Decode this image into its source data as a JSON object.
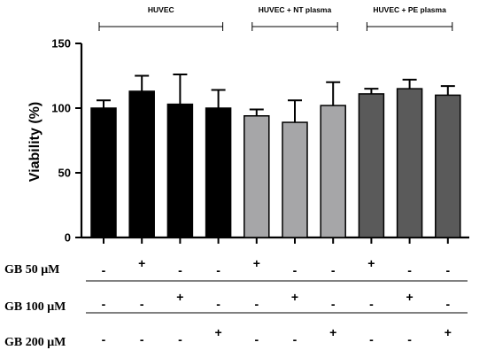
{
  "chart_data": {
    "type": "bar",
    "ylabel": "Viability (%)",
    "ylim": [
      0,
      150
    ],
    "yticks": [
      0,
      50,
      100,
      150
    ],
    "groups": [
      {
        "label": "HUVEC",
        "bar_indices": [
          0,
          1,
          2,
          3
        ]
      },
      {
        "label": "HUVEC + NT plasma",
        "bar_indices": [
          4,
          5,
          6
        ]
      },
      {
        "label": "HUVEC + PE  plasma",
        "bar_indices": [
          7,
          8,
          9
        ]
      }
    ],
    "bars": [
      {
        "value": 100,
        "error": 6,
        "color": "#000000"
      },
      {
        "value": 113,
        "error": 12,
        "color": "#000000"
      },
      {
        "value": 103,
        "error": 23,
        "color": "#000000"
      },
      {
        "value": 100,
        "error": 14,
        "color": "#000000"
      },
      {
        "value": 94,
        "error": 5,
        "color": "#a6a6a8"
      },
      {
        "value": 89,
        "error": 17,
        "color": "#a6a6a8"
      },
      {
        "value": 102,
        "error": 18,
        "color": "#a6a6a8"
      },
      {
        "value": 111,
        "error": 4,
        "color": "#5a5a5a"
      },
      {
        "value": 115,
        "error": 7,
        "color": "#5a5a5a"
      },
      {
        "value": 110,
        "error": 7,
        "color": "#5a5a5a"
      }
    ],
    "treatment_rows": [
      {
        "label": "GB 50 μM",
        "signs": [
          "-",
          "+",
          "-",
          "-",
          "+",
          "-",
          "-",
          "+",
          "-",
          "-"
        ]
      },
      {
        "label": "GB 100 μM",
        "signs": [
          "-",
          "-",
          "+",
          "-",
          "-",
          "+",
          "-",
          "-",
          "+",
          "-"
        ]
      },
      {
        "label": "GB 200 μM",
        "signs": [
          "-",
          "-",
          "-",
          "+",
          "-",
          "-",
          "+",
          "-",
          "-",
          "+"
        ]
      }
    ]
  }
}
